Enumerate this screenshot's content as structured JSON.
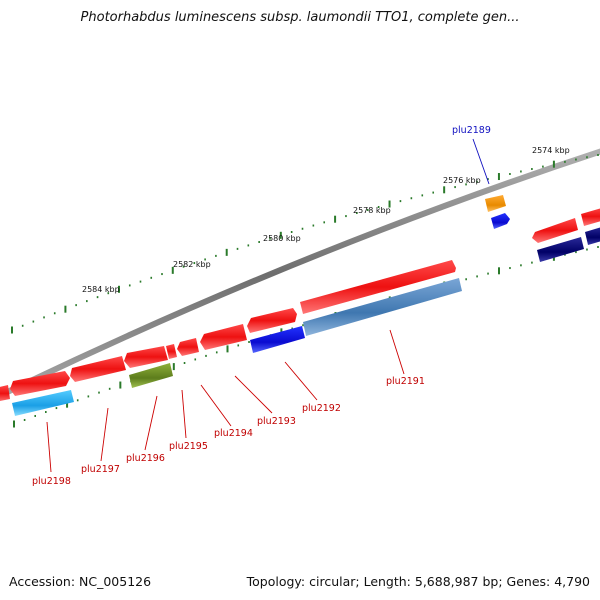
{
  "title": "Photorhabdus luminescens subsp. laumondii TTO1, complete gen...",
  "footer": {
    "accession": "Accession: NC_005126",
    "stats": "Topology: circular; Length: 5,688,987 bp; Genes: 4,790"
  },
  "scale_labels": [
    "2574 kbp",
    "2576 kbp",
    "2578 kbp",
    "2580 kbp",
    "2582 kbp",
    "2584 kbp"
  ],
  "gene_labels": [
    "plu2189",
    "plu2191",
    "plu2192",
    "plu2193",
    "plu2194",
    "plu2195",
    "plu2196",
    "plu2197",
    "plu2198"
  ],
  "colors": {
    "forward_gene": "#ee1111",
    "reverse_gene": "#1111dd",
    "rna_gene": "#6b8e23",
    "orange_gene": "#ee8800",
    "navy_gene": "#000077",
    "sky_gene": "#22aaee",
    "steel_gene": "#4a7fb5",
    "backbone": "#808080",
    "tick": "#2a7a2a",
    "label_red": "#cc0000",
    "label_blue": "#0000cc"
  }
}
